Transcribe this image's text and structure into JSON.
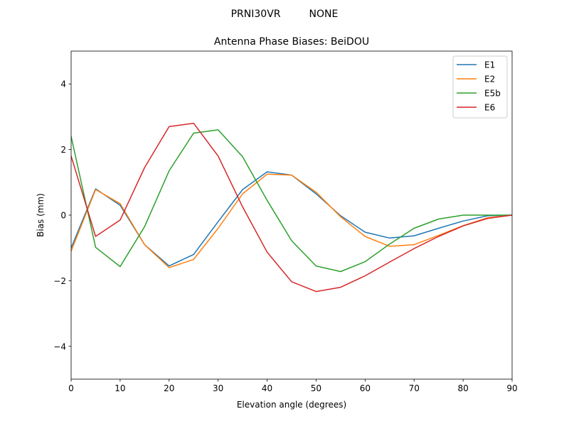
{
  "chart_data": {
    "type": "line",
    "suptitle": "PRNI30VR         NONE",
    "title": "Antenna Phase Biases: BeiDOU",
    "xlabel": "Elevation angle (degrees)",
    "ylabel": "Bias (mm)",
    "xlim": [
      0,
      90
    ],
    "ylim": [
      -5,
      5
    ],
    "xticks": [
      0,
      10,
      20,
      30,
      40,
      50,
      60,
      70,
      80,
      90
    ],
    "xtick_labels": [
      "0",
      "10",
      "20",
      "30",
      "40",
      "50",
      "60",
      "70",
      "80",
      "90"
    ],
    "yticks": [
      -4,
      -2,
      0,
      2,
      4
    ],
    "ytick_labels": [
      "−4",
      "−2",
      "0",
      "2",
      "4"
    ],
    "grid": false,
    "legend_position": "top-right",
    "x": [
      0,
      5,
      10,
      15,
      20,
      25,
      30,
      35,
      40,
      45,
      50,
      55,
      60,
      65,
      70,
      75,
      80,
      85,
      90
    ],
    "series": [
      {
        "name": "E1",
        "color": "#1f77b4",
        "values": [
          -1.0,
          0.8,
          0.3,
          -0.9,
          -1.55,
          -1.2,
          -0.2,
          0.78,
          1.32,
          1.22,
          0.65,
          -0.02,
          -0.52,
          -0.7,
          -0.63,
          -0.4,
          -0.18,
          -0.02,
          0.0
        ]
      },
      {
        "name": "E2",
        "color": "#ff7f0e",
        "values": [
          -1.1,
          0.78,
          0.35,
          -0.9,
          -1.6,
          -1.35,
          -0.4,
          0.65,
          1.25,
          1.22,
          0.7,
          -0.05,
          -0.65,
          -0.95,
          -0.9,
          -0.62,
          -0.32,
          -0.08,
          0.0
        ]
      },
      {
        "name": "E5b",
        "color": "#2ca02c",
        "values": [
          2.4,
          -0.98,
          -1.57,
          -0.35,
          1.35,
          2.5,
          2.6,
          1.78,
          0.45,
          -0.78,
          -1.55,
          -1.72,
          -1.42,
          -0.88,
          -0.4,
          -0.12,
          0.0,
          0.0,
          0.0
        ]
      },
      {
        "name": "E6",
        "color": "#d62728",
        "values": [
          1.8,
          -0.65,
          -0.15,
          1.45,
          2.7,
          2.8,
          1.8,
          0.25,
          -1.13,
          -2.03,
          -2.33,
          -2.2,
          -1.85,
          -1.43,
          -1.02,
          -0.65,
          -0.33,
          -0.1,
          0.0
        ]
      }
    ]
  }
}
